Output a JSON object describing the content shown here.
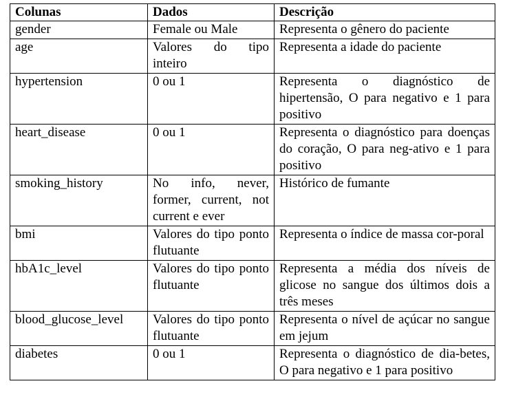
{
  "headers": {
    "col1": "Colunas",
    "col2": "Dados",
    "col3": "Descrição"
  },
  "rows": [
    {
      "column": "gender",
      "data": "Female ou Male",
      "description": "Representa o gênero do paciente"
    },
    {
      "column": "age",
      "data": "Valores do tipo inteiro",
      "description": "Representa a idade do paciente"
    },
    {
      "column": "hypertension",
      "data": "0 ou 1",
      "description": "Representa o diagnóstico de hipertensão, O para negativo e 1 para positivo"
    },
    {
      "column": "heart_disease",
      "data": "0 ou 1",
      "description": "Representa o diagnóstico para doenças do coração, O para neg-ativo e 1 para positivo"
    },
    {
      "column": "smoking_history",
      "data": "No info, never, former, current, not current e ever",
      "description": "Histórico de fumante"
    },
    {
      "column": "bmi",
      "data": "Valores do tipo ponto flutuante",
      "description": "Representa o índice de massa cor-poral"
    },
    {
      "column": "hbA1c_level",
      "data": "Valores do tipo ponto flutuante",
      "description": "Representa a média dos níveis de glicose no sangue dos últimos dois a três meses"
    },
    {
      "column": "blood_glucose_level",
      "data": "Valores do tipo ponto flutuante",
      "description": "Representa o nível de açúcar no sangue em jejum"
    },
    {
      "column": "diabetes",
      "data": "0 ou 1",
      "description": "Representa o diagnóstico de dia-betes, O para negativo e 1 para positivo"
    }
  ]
}
